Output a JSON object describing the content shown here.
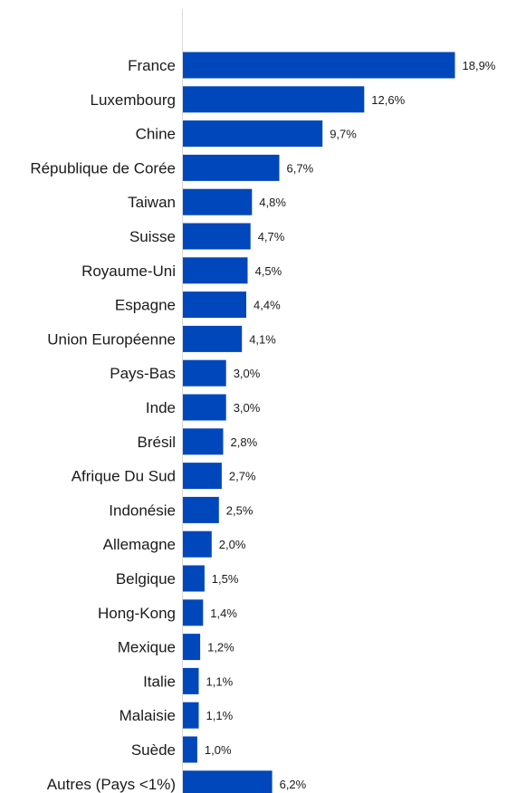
{
  "chart_data": {
    "type": "bar",
    "orientation": "horizontal",
    "title": "",
    "xlabel": "",
    "ylabel": "",
    "xlim": [
      0,
      20
    ],
    "grid": false,
    "legend": "none",
    "bar_color": "#0047BB",
    "categories": [
      "France",
      "Luxembourg",
      "Chine",
      "République de Corée",
      "Taiwan",
      "Suisse",
      "Royaume-Uni",
      "Espagne",
      "Union Européenne",
      "Pays-Bas",
      "Inde",
      "Brésil",
      "Afrique Du Sud",
      "Indonésie",
      "Allemagne",
      "Belgique",
      "Hong-Kong",
      "Mexique",
      "Italie",
      "Malaisie",
      "Suède",
      "Autres (Pays <1%)"
    ],
    "values": [
      18.9,
      12.6,
      9.7,
      6.7,
      4.8,
      4.7,
      4.5,
      4.4,
      4.1,
      3.0,
      3.0,
      2.8,
      2.7,
      2.5,
      2.0,
      1.5,
      1.4,
      1.2,
      1.1,
      1.1,
      1.0,
      6.2
    ],
    "value_labels": [
      "18,9%",
      "12,6%",
      "9,7%",
      "6,7%",
      "4,8%",
      "4,7%",
      "4,5%",
      "4,4%",
      "4,1%",
      "3,0%",
      "3,0%",
      "2,8%",
      "2,7%",
      "2,5%",
      "2,0%",
      "1,5%",
      "1,4%",
      "1,2%",
      "1,1%",
      "1,1%",
      "1,0%",
      "6,2%"
    ]
  }
}
